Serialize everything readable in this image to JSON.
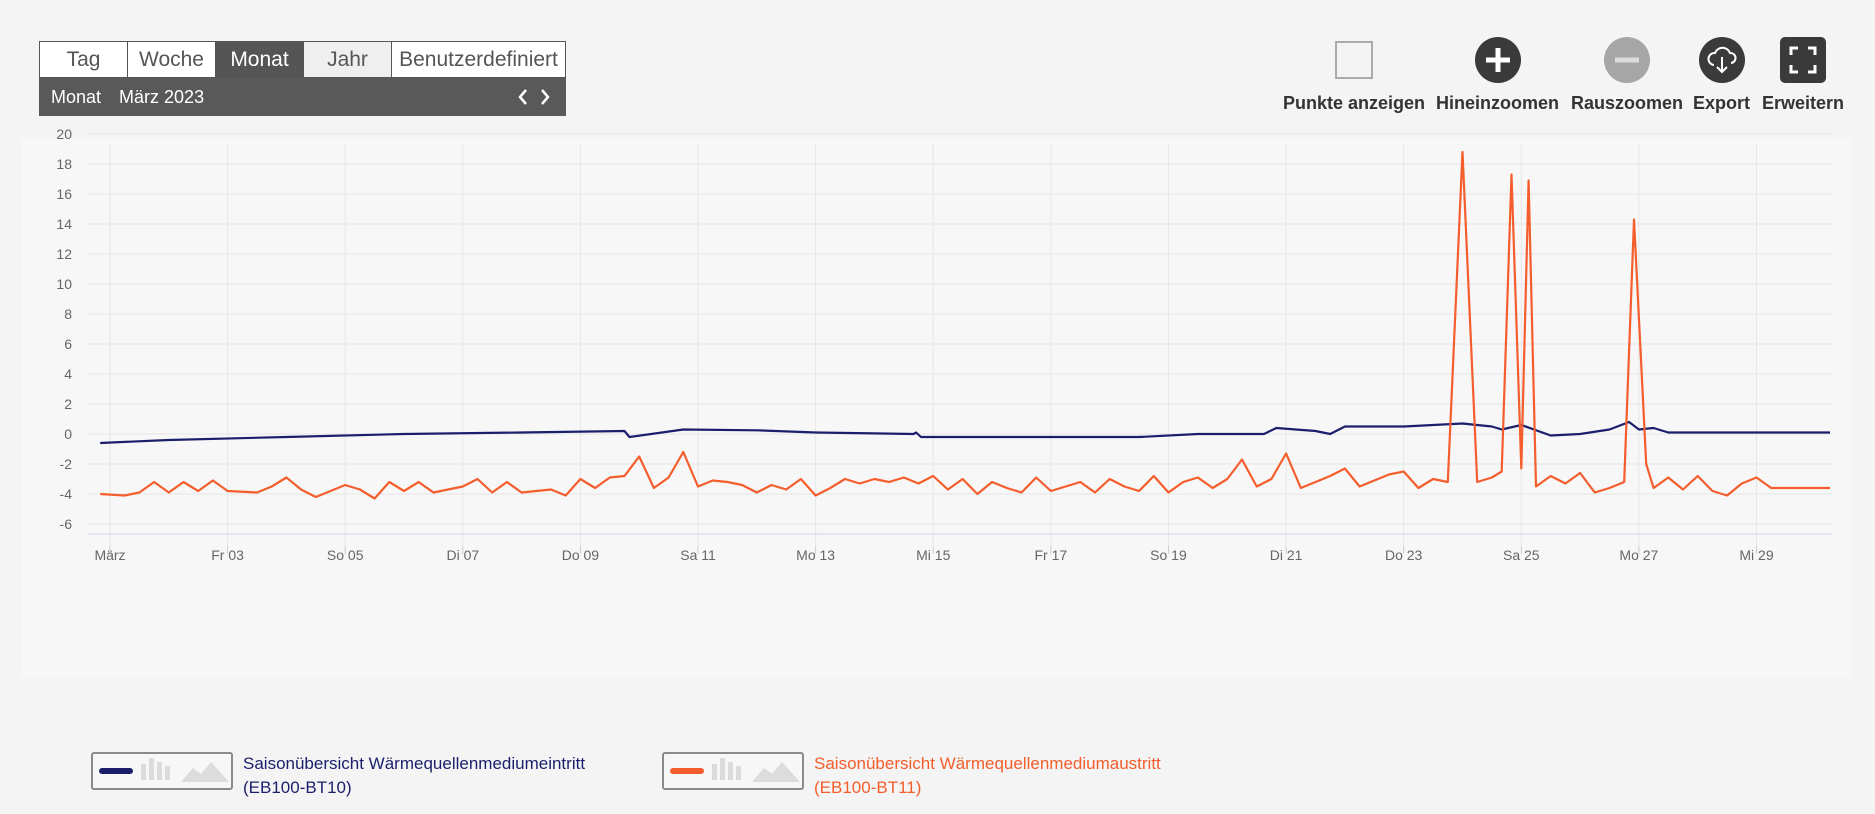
{
  "tabs": [
    "Tag",
    "Woche",
    "Monat",
    "Jahr",
    "Benutzerdefiniert"
  ],
  "period": {
    "label": "Monat",
    "value": "März 2023"
  },
  "toolbar": {
    "points": "Punkte anzeigen",
    "zoom_in": "Hineinzoomen",
    "zoom_out": "Rauszoomen",
    "export": "Export",
    "expand": "Erweitern"
  },
  "colors": {
    "series1": "#1b1f6b",
    "series2": "#f45d2c",
    "active_tab": "#555555",
    "disabled_zoom": "#a6a6a6"
  },
  "icons": {
    "points": "checkbox-icon",
    "zoom_in": "plus-circle-icon",
    "zoom_out": "minus-circle-icon",
    "export": "cloud-download-icon",
    "expand": "fullscreen-icon"
  },
  "chart_data": {
    "type": "line",
    "ylim": [
      -7,
      21
    ],
    "yticks": [
      20,
      18,
      16,
      14,
      12,
      10,
      8,
      6,
      4,
      2,
      0,
      -2,
      -4,
      -6
    ],
    "xlim": [
      "2023-03-01 00:00",
      "2023-03-30 06:00"
    ],
    "xticks": [
      {
        "x": "2023-03-01 00:00",
        "label": "März"
      },
      {
        "x": "2023-03-03 00:00",
        "label": "Fr 03"
      },
      {
        "x": "2023-03-05 00:00",
        "label": "So 05"
      },
      {
        "x": "2023-03-07 00:00",
        "label": "Di 07"
      },
      {
        "x": "2023-03-09 00:00",
        "label": "Do 09"
      },
      {
        "x": "2023-03-11 00:00",
        "label": "Sa 11"
      },
      {
        "x": "2023-03-13 00:00",
        "label": "Mo 13"
      },
      {
        "x": "2023-03-15 00:00",
        "label": "Mi 15"
      },
      {
        "x": "2023-03-17 00:00",
        "label": "Fr 17"
      },
      {
        "x": "2023-03-19 00:00",
        "label": "So 19"
      },
      {
        "x": "2023-03-21 00:00",
        "label": "Di 21"
      },
      {
        "x": "2023-03-23 00:00",
        "label": "Do 23"
      },
      {
        "x": "2023-03-25 00:00",
        "label": "Sa 25"
      },
      {
        "x": "2023-03-27 00:00",
        "label": "Mo 27"
      },
      {
        "x": "2023-03-29 00:00",
        "label": "Mi 29"
      }
    ],
    "grid": true,
    "legend_position": "bottom-left",
    "series": [
      {
        "name_line1": "Saisonübersicht Wärmequellenmediumeintritt",
        "name_line2": "(EB100-BT10)",
        "color": "#1b1f6b",
        "points": [
          [
            "2023-02-28 20:00",
            -0.6
          ],
          [
            "2023-03-02 00:00",
            -0.4
          ],
          [
            "2023-03-04 00:00",
            -0.2
          ],
          [
            "2023-03-06 00:00",
            0.0
          ],
          [
            "2023-03-08 00:00",
            0.1
          ],
          [
            "2023-03-09 18:00",
            0.2
          ],
          [
            "2023-03-09 20:00",
            -0.2
          ],
          [
            "2023-03-10 18:00",
            0.3
          ],
          [
            "2023-03-12 00:00",
            0.25
          ],
          [
            "2023-03-13 00:00",
            0.1
          ],
          [
            "2023-03-14 16:00",
            0.0
          ],
          [
            "2023-03-14 17:00",
            0.1
          ],
          [
            "2023-03-14 19:00",
            -0.2
          ],
          [
            "2023-03-16 00:00",
            -0.2
          ],
          [
            "2023-03-18 12:00",
            -0.2
          ],
          [
            "2023-03-19 12:00",
            0.0
          ],
          [
            "2023-03-20 15:00",
            0.0
          ],
          [
            "2023-03-20 20:00",
            0.4
          ],
          [
            "2023-03-21 12:00",
            0.2
          ],
          [
            "2023-03-21 18:00",
            0.0
          ],
          [
            "2023-03-22 00:00",
            0.5
          ],
          [
            "2023-03-23 00:00",
            0.5
          ],
          [
            "2023-03-24 00:00",
            0.7
          ],
          [
            "2023-03-24 12:00",
            0.5
          ],
          [
            "2023-03-24 16:00",
            0.3
          ],
          [
            "2023-03-25 00:00",
            0.6
          ],
          [
            "2023-03-25 12:00",
            -0.1
          ],
          [
            "2023-03-26 00:00",
            0.0
          ],
          [
            "2023-03-26 12:00",
            0.3
          ],
          [
            "2023-03-26 20:00",
            0.8
          ],
          [
            "2023-03-27 00:00",
            0.3
          ],
          [
            "2023-03-27 06:00",
            0.4
          ],
          [
            "2023-03-27 12:00",
            0.1
          ],
          [
            "2023-03-29 00:00",
            0.1
          ],
          [
            "2023-03-30 06:00",
            0.1
          ]
        ]
      },
      {
        "name_line1": "Saisonübersicht Wärmequellenmediumaustritt",
        "name_line2": "(EB100-BT11)",
        "color": "#f45d2c",
        "points": [
          [
            "2023-02-28 20:00",
            -4.0
          ],
          [
            "2023-03-01 06:00",
            -4.1
          ],
          [
            "2023-03-01 12:00",
            -3.9
          ],
          [
            "2023-03-01 18:00",
            -3.2
          ],
          [
            "2023-03-02 00:00",
            -3.9
          ],
          [
            "2023-03-02 06:00",
            -3.2
          ],
          [
            "2023-03-02 12:00",
            -3.8
          ],
          [
            "2023-03-02 18:00",
            -3.1
          ],
          [
            "2023-03-03 00:00",
            -3.8
          ],
          [
            "2023-03-03 12:00",
            -3.9
          ],
          [
            "2023-03-03 18:00",
            -3.5
          ],
          [
            "2023-03-04 00:00",
            -2.9
          ],
          [
            "2023-03-04 06:00",
            -3.7
          ],
          [
            "2023-03-04 12:00",
            -4.2
          ],
          [
            "2023-03-05 00:00",
            -3.4
          ],
          [
            "2023-03-05 06:00",
            -3.7
          ],
          [
            "2023-03-05 12:00",
            -4.3
          ],
          [
            "2023-03-05 18:00",
            -3.2
          ],
          [
            "2023-03-06 00:00",
            -3.8
          ],
          [
            "2023-03-06 06:00",
            -3.2
          ],
          [
            "2023-03-06 12:00",
            -3.9
          ],
          [
            "2023-03-07 00:00",
            -3.5
          ],
          [
            "2023-03-07 06:00",
            -3.0
          ],
          [
            "2023-03-07 12:00",
            -3.9
          ],
          [
            "2023-03-07 18:00",
            -3.2
          ],
          [
            "2023-03-08 00:00",
            -3.9
          ],
          [
            "2023-03-08 12:00",
            -3.7
          ],
          [
            "2023-03-08 18:00",
            -4.1
          ],
          [
            "2023-03-09 00:00",
            -3.0
          ],
          [
            "2023-03-09 06:00",
            -3.6
          ],
          [
            "2023-03-09 12:00",
            -2.9
          ],
          [
            "2023-03-09 18:00",
            -2.8
          ],
          [
            "2023-03-10 00:00",
            -1.5
          ],
          [
            "2023-03-10 06:00",
            -3.6
          ],
          [
            "2023-03-10 12:00",
            -2.9
          ],
          [
            "2023-03-10 18:00",
            -1.2
          ],
          [
            "2023-03-11 00:00",
            -3.5
          ],
          [
            "2023-03-11 06:00",
            -3.1
          ],
          [
            "2023-03-11 12:00",
            -3.2
          ],
          [
            "2023-03-11 18:00",
            -3.4
          ],
          [
            "2023-03-12 00:00",
            -3.9
          ],
          [
            "2023-03-12 06:00",
            -3.4
          ],
          [
            "2023-03-12 12:00",
            -3.7
          ],
          [
            "2023-03-12 18:00",
            -3.0
          ],
          [
            "2023-03-13 00:00",
            -4.1
          ],
          [
            "2023-03-13 06:00",
            -3.6
          ],
          [
            "2023-03-13 12:00",
            -3.0
          ],
          [
            "2023-03-13 18:00",
            -3.3
          ],
          [
            "2023-03-14 00:00",
            -3.0
          ],
          [
            "2023-03-14 06:00",
            -3.2
          ],
          [
            "2023-03-14 12:00",
            -2.9
          ],
          [
            "2023-03-14 18:00",
            -3.3
          ],
          [
            "2023-03-15 00:00",
            -2.8
          ],
          [
            "2023-03-15 06:00",
            -3.7
          ],
          [
            "2023-03-15 12:00",
            -3.0
          ],
          [
            "2023-03-15 18:00",
            -4.0
          ],
          [
            "2023-03-16 00:00",
            -3.2
          ],
          [
            "2023-03-16 06:00",
            -3.6
          ],
          [
            "2023-03-16 12:00",
            -3.9
          ],
          [
            "2023-03-16 18:00",
            -2.9
          ],
          [
            "2023-03-17 00:00",
            -3.8
          ],
          [
            "2023-03-17 06:00",
            -3.5
          ],
          [
            "2023-03-17 12:00",
            -3.2
          ],
          [
            "2023-03-17 18:00",
            -3.9
          ],
          [
            "2023-03-18 00:00",
            -3.0
          ],
          [
            "2023-03-18 06:00",
            -3.5
          ],
          [
            "2023-03-18 12:00",
            -3.8
          ],
          [
            "2023-03-18 18:00",
            -2.8
          ],
          [
            "2023-03-19 00:00",
            -3.9
          ],
          [
            "2023-03-19 06:00",
            -3.2
          ],
          [
            "2023-03-19 12:00",
            -2.9
          ],
          [
            "2023-03-19 18:00",
            -3.6
          ],
          [
            "2023-03-20 00:00",
            -3.0
          ],
          [
            "2023-03-20 06:00",
            -1.7
          ],
          [
            "2023-03-20 12:00",
            -3.5
          ],
          [
            "2023-03-20 18:00",
            -3.0
          ],
          [
            "2023-03-21 00:00",
            -1.3
          ],
          [
            "2023-03-21 06:00",
            -3.6
          ],
          [
            "2023-03-21 12:00",
            -3.2
          ],
          [
            "2023-03-21 18:00",
            -2.8
          ],
          [
            "2023-03-22 00:00",
            -2.3
          ],
          [
            "2023-03-22 06:00",
            -3.5
          ],
          [
            "2023-03-22 12:00",
            -3.1
          ],
          [
            "2023-03-22 18:00",
            -2.7
          ],
          [
            "2023-03-23 00:00",
            -2.5
          ],
          [
            "2023-03-23 06:00",
            -3.6
          ],
          [
            "2023-03-23 12:00",
            -3.0
          ],
          [
            "2023-03-23 18:00",
            -3.2
          ],
          [
            "2023-03-24 00:00",
            18.8
          ],
          [
            "2023-03-24 06:00",
            -3.2
          ],
          [
            "2023-03-24 12:00",
            -2.9
          ],
          [
            "2023-03-24 16:00",
            -2.5
          ],
          [
            "2023-03-24 20:00",
            17.3
          ],
          [
            "2023-03-25 00:00",
            -2.3
          ],
          [
            "2023-03-25 03:00",
            16.9
          ],
          [
            "2023-03-25 06:00",
            -3.5
          ],
          [
            "2023-03-25 12:00",
            -2.8
          ],
          [
            "2023-03-25 18:00",
            -3.3
          ],
          [
            "2023-03-26 00:00",
            -2.6
          ],
          [
            "2023-03-26 06:00",
            -3.9
          ],
          [
            "2023-03-26 12:00",
            -3.6
          ],
          [
            "2023-03-26 18:00",
            -3.2
          ],
          [
            "2023-03-26 22:00",
            14.3
          ],
          [
            "2023-03-27 03:00",
            -2.0
          ],
          [
            "2023-03-27 06:00",
            -3.6
          ],
          [
            "2023-03-27 12:00",
            -2.9
          ],
          [
            "2023-03-27 18:00",
            -3.7
          ],
          [
            "2023-03-28 00:00",
            -2.8
          ],
          [
            "2023-03-28 06:00",
            -3.8
          ],
          [
            "2023-03-28 12:00",
            -4.1
          ],
          [
            "2023-03-28 18:00",
            -3.3
          ],
          [
            "2023-03-29 00:00",
            -2.9
          ],
          [
            "2023-03-29 06:00",
            -3.6
          ],
          [
            "2023-03-29 12:00",
            -3.6
          ],
          [
            "2023-03-30 06:00",
            -3.6
          ]
        ]
      }
    ]
  }
}
